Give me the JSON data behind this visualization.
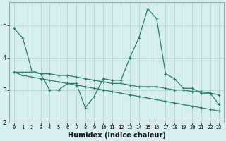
{
  "xlabel": "Humidex (Indice chaleur)",
  "ylabel": "",
  "background_color": "#d6eeee",
  "grid_color": "#b8d8d8",
  "line_color": "#2d7d6b",
  "xlim": [
    -0.5,
    23.5
  ],
  "ylim": [
    2.0,
    5.7
  ],
  "yticks": [
    2,
    3,
    4,
    5
  ],
  "xticks": [
    0,
    1,
    2,
    3,
    4,
    5,
    6,
    7,
    8,
    9,
    10,
    11,
    12,
    13,
    14,
    15,
    16,
    17,
    18,
    19,
    20,
    21,
    22,
    23
  ],
  "series": [
    [
      4.9,
      4.6,
      3.6,
      3.5,
      3.0,
      3.0,
      3.2,
      3.2,
      2.45,
      2.8,
      3.35,
      3.3,
      3.3,
      4.0,
      4.6,
      5.5,
      5.2,
      3.5,
      3.35,
      3.05,
      3.05,
      2.9,
      2.9,
      2.55
    ],
    [
      3.55,
      3.55,
      3.55,
      3.5,
      3.5,
      3.45,
      3.45,
      3.4,
      3.35,
      3.3,
      3.25,
      3.2,
      3.2,
      3.15,
      3.1,
      3.1,
      3.1,
      3.05,
      3.0,
      3.0,
      2.95,
      2.95,
      2.9,
      2.85
    ],
    [
      3.55,
      3.45,
      3.4,
      3.35,
      3.3,
      3.25,
      3.2,
      3.15,
      3.1,
      3.05,
      3.0,
      2.95,
      2.9,
      2.85,
      2.8,
      2.75,
      2.7,
      2.65,
      2.6,
      2.55,
      2.5,
      2.45,
      2.4,
      2.35
    ]
  ],
  "xlabel_fontsize": 7,
  "xlabel_fontweight": "bold",
  "xtick_fontsize": 5,
  "ytick_fontsize": 6.5,
  "marker_size": 3,
  "line_width": 0.9
}
